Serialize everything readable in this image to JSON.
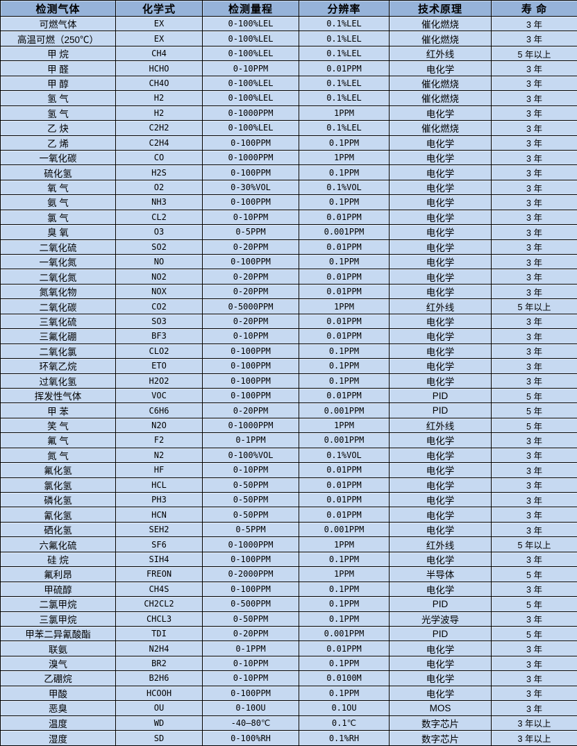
{
  "table": {
    "colors": {
      "header_bg": "#96b3d9",
      "row_bg": "#c6d9f1",
      "border": "#000000",
      "text": "#000000"
    },
    "headers": {
      "gas": "检测气体",
      "formula": "化学式",
      "range": "检测量程",
      "resolution": "分辨率",
      "principle": "技术原理",
      "lifespan": "寿 命"
    },
    "column_names": [
      "cell-gas-name",
      "cell-chemical-formula",
      "cell-detection-range",
      "cell-resolution",
      "cell-technology-principle",
      "cell-lifespan"
    ],
    "rows": [
      [
        "可燃气体",
        "EX",
        "0-100%LEL",
        "0.1%LEL",
        "催化燃烧",
        "3 年"
      ],
      [
        "高温可燃（250℃）",
        "EX",
        "0-100%LEL",
        "0.1%LEL",
        "催化燃烧",
        "3 年"
      ],
      [
        "甲 烷",
        "CH4",
        "0-100%LEL",
        "0.1%LEL",
        "红外线",
        "5 年以上"
      ],
      [
        "甲 醛",
        "HCHO",
        "0-10PPM",
        "0.01PPM",
        "电化学",
        "3 年"
      ],
      [
        "甲 醇",
        "CH4O",
        "0-100%LEL",
        "0.1%LEL",
        "催化燃烧",
        "3 年"
      ],
      [
        "氢 气",
        "H2",
        "0-100%LEL",
        "0.1%LEL",
        "催化燃烧",
        "3 年"
      ],
      [
        "氢 气",
        "H2",
        "0-1000PPM",
        "1PPM",
        "电化学",
        "3 年"
      ],
      [
        "乙 炔",
        "C2H2",
        "0-100%LEL",
        "0.1%LEL",
        "催化燃烧",
        "3 年"
      ],
      [
        "乙 烯",
        "C2H4",
        "0-100PPM",
        "0.1PPM",
        "电化学",
        "3 年"
      ],
      [
        "一氧化碳",
        "CO",
        "0-1000PPM",
        "1PPM",
        "电化学",
        "3 年"
      ],
      [
        "硫化氢",
        "H2S",
        "0-100PPM",
        "0.1PPM",
        "电化学",
        "3 年"
      ],
      [
        "氧 气",
        "O2",
        "0-30%VOL",
        "0.1%VOL",
        "电化学",
        "3 年"
      ],
      [
        "氨 气",
        "NH3",
        "0-100PPM",
        "0.1PPM",
        "电化学",
        "3 年"
      ],
      [
        "氯 气",
        "CL2",
        "0-10PPM",
        "0.01PPM",
        "电化学",
        "3 年"
      ],
      [
        "臭 氧",
        "O3",
        "0-5PPM",
        "0.001PPM",
        "电化学",
        "3 年"
      ],
      [
        "二氧化硫",
        "SO2",
        "0-20PPM",
        "0.01PPM",
        "电化学",
        "3 年"
      ],
      [
        "一氧化氮",
        "NO",
        "0-100PPM",
        "0.1PPM",
        "电化学",
        "3 年"
      ],
      [
        "二氧化氮",
        "NO2",
        "0-20PPM",
        "0.01PPM",
        "电化学",
        "3 年"
      ],
      [
        "氮氧化物",
        "NOX",
        "0-20PPM",
        "0.01PPM",
        "电化学",
        "3 年"
      ],
      [
        "二氧化碳",
        "CO2",
        "0-5000PPM",
        "1PPM",
        "红外线",
        "5 年以上"
      ],
      [
        "三氧化硫",
        "SO3",
        "0-20PPM",
        "0.01PPM",
        "电化学",
        "3 年"
      ],
      [
        "三氟化硼",
        "BF3",
        "0-10PPM",
        "0.01PPM",
        "电化学",
        "3 年"
      ],
      [
        "二氧化氯",
        "CLO2",
        "0-100PPM",
        "0.1PPM",
        "电化学",
        "3 年"
      ],
      [
        "环氧乙烷",
        "ETO",
        "0-100PPM",
        "0.1PPM",
        "电化学",
        "3 年"
      ],
      [
        "过氧化氢",
        "H2O2",
        "0-100PPM",
        "0.1PPM",
        "电化学",
        "3 年"
      ],
      [
        "挥发性气体",
        "VOC",
        "0-100PPM",
        "0.01PPM",
        "PID",
        "5 年"
      ],
      [
        "甲 苯",
        "C6H6",
        "0-20PPM",
        "0.001PPM",
        "PID",
        "5 年"
      ],
      [
        "笑 气",
        "N2O",
        "0-1000PPM",
        "1PPM",
        "红外线",
        "5 年"
      ],
      [
        "氟 气",
        "F2",
        "0-1PPM",
        "0.001PPM",
        "电化学",
        "3 年"
      ],
      [
        "氮 气",
        "N2",
        "0-100%VOL",
        "0.1%VOL",
        "电化学",
        "3 年"
      ],
      [
        "氟化氢",
        "HF",
        "0-10PPM",
        "0.01PPM",
        "电化学",
        "3 年"
      ],
      [
        "氯化氢",
        "HCL",
        "0-50PPM",
        "0.01PPM",
        "电化学",
        "3 年"
      ],
      [
        "磷化氢",
        "PH3",
        "0-50PPM",
        "0.01PPM",
        "电化学",
        "3 年"
      ],
      [
        "氰化氢",
        "HCN",
        "0-50PPM",
        "0.01PPM",
        "电化学",
        "3 年"
      ],
      [
        "硒化氢",
        "SEH2",
        "0-5PPM",
        "0.001PPM",
        "电化学",
        "3 年"
      ],
      [
        "六氟化硫",
        "SF6",
        "0-1000PPM",
        "1PPM",
        "红外线",
        "5 年以上"
      ],
      [
        "硅 烷",
        "SIH4",
        "0-100PPM",
        "0.1PPM",
        "电化学",
        "3 年"
      ],
      [
        "氟利昂",
        "FREON",
        "0-2000PPM",
        "1PPM",
        "半导体",
        "5 年"
      ],
      [
        "甲硫醇",
        "CH4S",
        "0-100PPM",
        "0.1PPM",
        "电化学",
        "3 年"
      ],
      [
        "二氯甲烷",
        "CH2CL2",
        "0-500PPM",
        "0.1PPM",
        "PID",
        "5 年"
      ],
      [
        "三氯甲烷",
        "CHCL3",
        "0-50PPM",
        "0.1PPM",
        "光学波导",
        "3 年"
      ],
      [
        "甲苯二异氰酸酯",
        "TDI",
        "0-20PPM",
        "0.001PPM",
        "PID",
        "5 年"
      ],
      [
        "联氨",
        "N2H4",
        "0-1PPM",
        "0.01PPM",
        "电化学",
        "3 年"
      ],
      [
        "溴气",
        "BR2",
        "0-10PPM",
        "0.1PPM",
        "电化学",
        "3 年"
      ],
      [
        "乙硼烷",
        "B2H6",
        "0-10PPM",
        "0.0100M",
        "电化学",
        "3 年"
      ],
      [
        "甲酸",
        "HCOOH",
        "0-100PPM",
        "0.1PPM",
        "电化学",
        "3 年"
      ],
      [
        "恶臭",
        "OU",
        "0-10OU",
        "0.1OU",
        "MOS",
        "3 年"
      ],
      [
        "温度",
        "WD",
        "-40—80℃",
        "0.1℃",
        "数字芯片",
        "3 年以上"
      ],
      [
        "湿度",
        "SD",
        "0-100%RH",
        "0.1%RH",
        "数字芯片",
        "3 年以上"
      ]
    ]
  }
}
